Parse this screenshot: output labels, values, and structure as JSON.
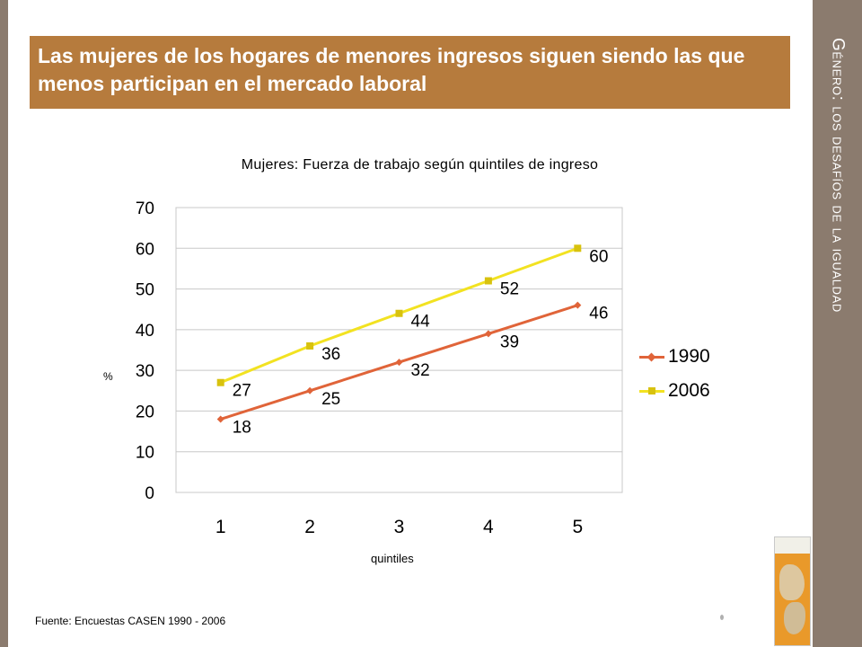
{
  "side_title": "Género: los desafíos de la igualdad",
  "banner_title": "Las mujeres de los hogares de menores ingresos siguen siendo las que menos participan en el mercado laboral",
  "source_note": "Fuente: Encuestas CASEN 1990 - 2006",
  "colors": {
    "panel": "#8b7b6e",
    "banner": "#b67b3d",
    "series_1990": "#e06439",
    "series_2006": "#f2e221"
  },
  "chart_data": {
    "type": "line",
    "title": "Mujeres: Fuerza de trabajo según quintiles de ingreso",
    "xlabel": "quintiles",
    "ylabel": "%",
    "categories": [
      "1",
      "2",
      "3",
      "4",
      "5"
    ],
    "ylim": [
      0,
      70
    ],
    "yticks": [
      "0",
      "10",
      "20",
      "30",
      "40",
      "50",
      "60",
      "70"
    ],
    "grid": "horizontal",
    "legend_position": "right",
    "series": [
      {
        "name": "1990",
        "values": [
          18,
          25,
          32,
          39,
          46
        ],
        "marker": "diamond"
      },
      {
        "name": "2006",
        "values": [
          27,
          36,
          44,
          52,
          60
        ],
        "marker": "square"
      }
    ]
  }
}
